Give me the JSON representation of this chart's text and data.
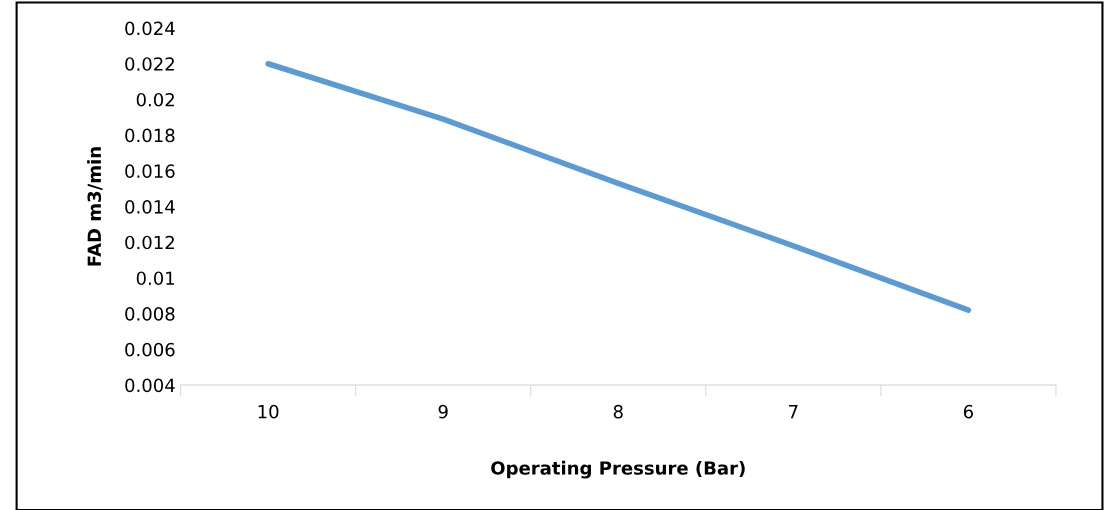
{
  "chart_data": {
    "type": "line",
    "xlabel": "Operating Pressure (Bar)",
    "ylabel": "FAD m3/min",
    "categories": [
      "10",
      "9",
      "8",
      "7",
      "6"
    ],
    "series": [
      {
        "color": "#5b9bd5",
        "values": [
          0.022,
          0.0189,
          0.0153,
          0.0118,
          0.0082
        ]
      }
    ],
    "ylim": [
      0.004,
      0.024
    ],
    "yticks": [
      0.004,
      0.006,
      0.008,
      0.01,
      0.012,
      0.014,
      0.016,
      0.018,
      0.02,
      0.022,
      0.024
    ],
    "grid": false,
    "marker": "none",
    "line_style": "solid"
  }
}
